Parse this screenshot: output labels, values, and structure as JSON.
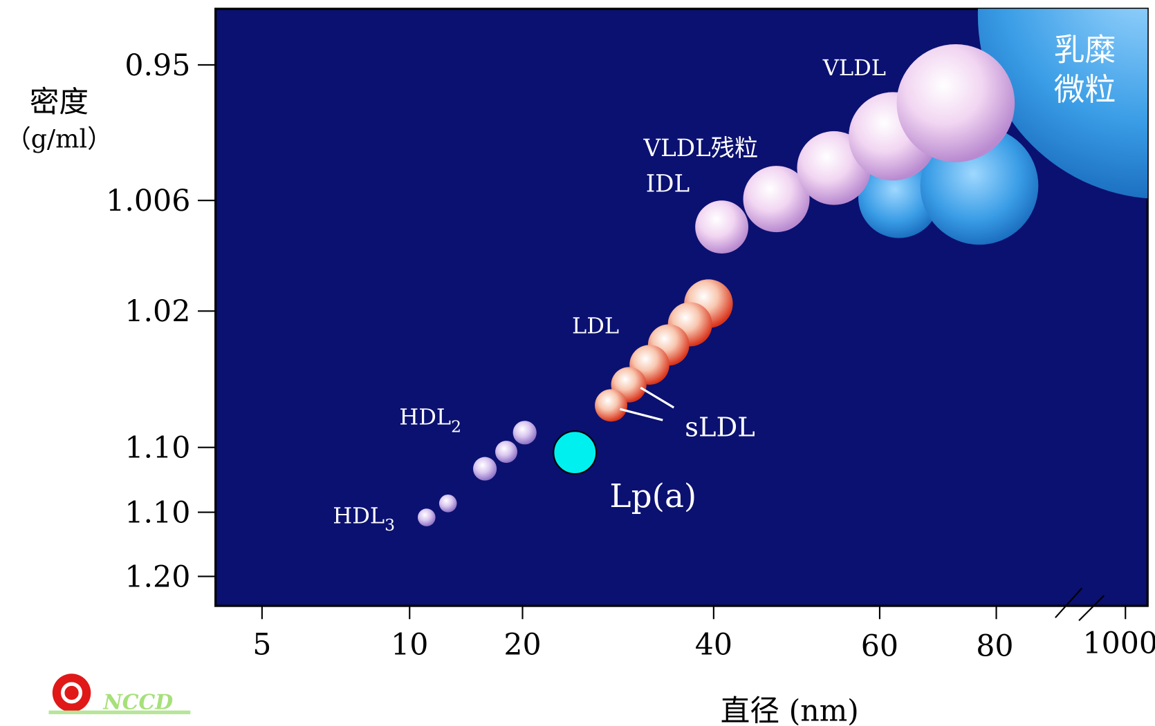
{
  "y_axis": {
    "title": [
      "密度",
      "（g/ml）"
    ],
    "ticks": [
      "0.95",
      "1.006",
      "1.02",
      "1.10",
      "1.10",
      "1.20"
    ]
  },
  "x_axis": {
    "title": "直径 (nm)",
    "ticks": [
      "5",
      "10",
      "20",
      "40",
      "60",
      "80",
      "1000"
    ]
  },
  "labels": {
    "chylomicron": [
      "乳糜",
      "微粒"
    ],
    "vldl": "VLDL",
    "vldl_remnant": "VLDL残粒",
    "idl": "IDL",
    "ldl": "LDL",
    "sldl": "sLDL",
    "hdl2": {
      "text": "HDL",
      "sub": "2"
    },
    "hdl3": {
      "text": "HDL",
      "sub": "3"
    },
    "lpa": "Lp(a)"
  },
  "logo": "NCCD"
}
